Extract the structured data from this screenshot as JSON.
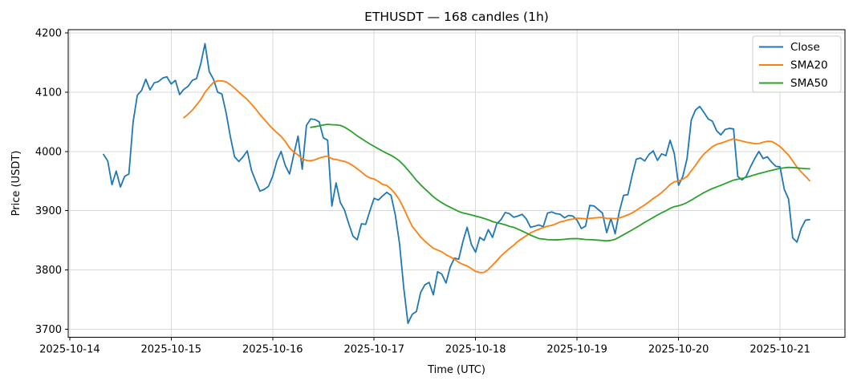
{
  "chart_data": {
    "type": "line",
    "title": "ETHUSDT — 168 candles (1h)",
    "xlabel": "Time (UTC)",
    "ylabel": "Price (USDT)",
    "grid": true,
    "legend_position": "upper right",
    "background_color": "#ffffff",
    "grid_color": "#d9d9d9",
    "spine_color": "#000000",
    "y_ticks": [
      3700,
      3800,
      3900,
      4000,
      4100,
      4200
    ],
    "x_tick_labels": [
      "2025-10-14",
      "2025-10-15",
      "2025-10-16",
      "2025-10-17",
      "2025-10-18",
      "2025-10-19",
      "2025-10-20",
      "2025-10-21"
    ],
    "x_tick_indices": [
      -8,
      16,
      40,
      64,
      88,
      112,
      136,
      160
    ],
    "x_axis_note": "168 hourly closes; index 0 = 2025-10-14 08:00 UTC",
    "ylim_hint": [
      3686,
      4206
    ],
    "series": [
      {
        "name": "Close",
        "color": "#1f77b4",
        "values": [
          3995,
          3984,
          3944,
          3967,
          3940,
          3958,
          3962,
          4050,
          4095,
          4103,
          4122,
          4104,
          4116,
          4118,
          4124,
          4126,
          4114,
          4120,
          4096,
          4105,
          4110,
          4120,
          4123,
          4148,
          4182,
          4135,
          4122,
          4100,
          4097,
          4065,
          4025,
          3991,
          3983,
          3991,
          4001,
          3968,
          3950,
          3933,
          3936,
          3941,
          3958,
          3984,
          4000,
          3976,
          3962,
          3995,
          4026,
          3970,
          4044,
          4055,
          4054,
          4050,
          4023,
          4019,
          3908,
          3947,
          3914,
          3901,
          3878,
          3857,
          3851,
          3878,
          3877,
          3900,
          3921,
          3918,
          3925,
          3931,
          3926,
          3893,
          3845,
          3770,
          3710,
          3725,
          3730,
          3762,
          3775,
          3779,
          3758,
          3797,
          3793,
          3778,
          3805,
          3820,
          3818,
          3848,
          3872,
          3843,
          3830,
          3855,
          3850,
          3868,
          3855,
          3878,
          3885,
          3897,
          3895,
          3889,
          3891,
          3894,
          3886,
          3872,
          3874,
          3876,
          3873,
          3896,
          3898,
          3895,
          3894,
          3888,
          3892,
          3891,
          3884,
          3870,
          3874,
          3909,
          3908,
          3902,
          3896,
          3863,
          3887,
          3861,
          3899,
          3926,
          3927,
          3959,
          3987,
          3989,
          3984,
          3995,
          4001,
          3985,
          3996,
          3993,
          4019,
          3996,
          3943,
          3958,
          3988,
          4053,
          4070,
          4076,
          4066,
          4055,
          4051,
          4035,
          4028,
          4037,
          4039,
          4038,
          3958,
          3952,
          3958,
          3974,
          3988,
          4000,
          3988,
          3991,
          3982,
          3975,
          3974,
          3936,
          3920,
          3854,
          3847,
          3870,
          3884,
          3885
        ]
      },
      {
        "name": "SMA20",
        "color": "#ff7f0e",
        "derived_from": "Close",
        "window": 20
      },
      {
        "name": "SMA50",
        "color": "#2ca02c",
        "derived_from": "Close",
        "window": 50
      }
    ]
  }
}
